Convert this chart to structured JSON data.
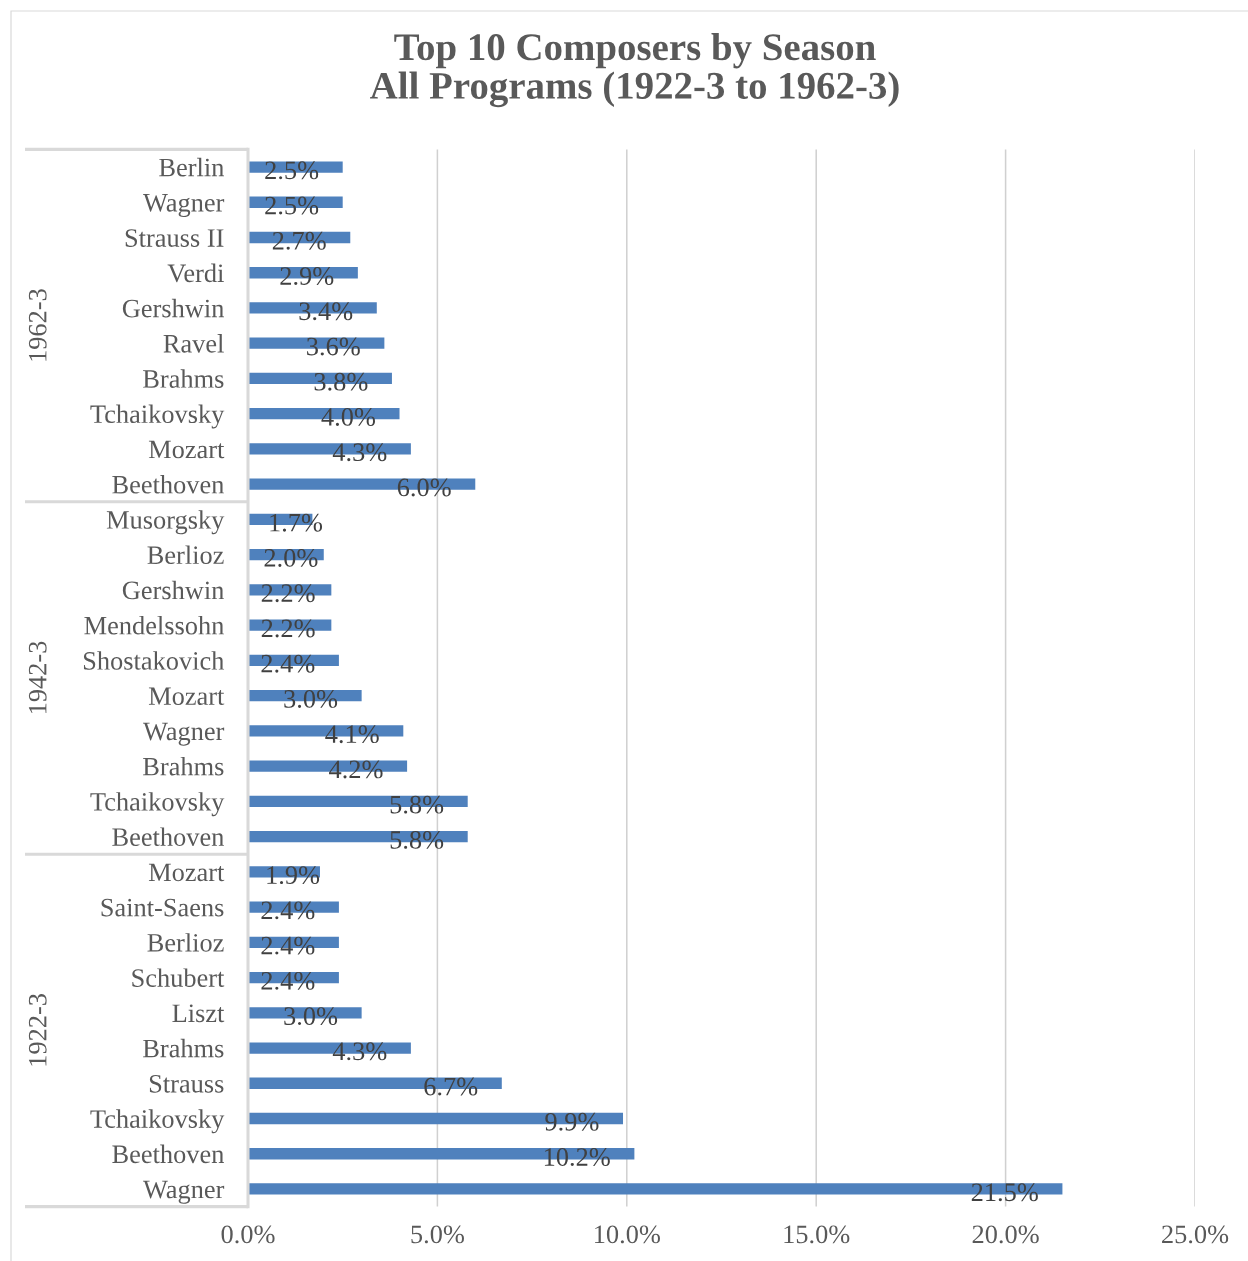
{
  "chart_data": {
    "type": "bar",
    "orientation": "horizontal",
    "title": "Top 10 Composers by Season\nAll Programs (1922-3 to 1962-3)",
    "categories": [
      "Berlin",
      "Wagner",
      "Strauss II",
      "Verdi",
      "Gershwin",
      "Ravel",
      "Brahms",
      "Tchaikovsky",
      "Mozart",
      "Beethoven",
      "Musorgsky",
      "Berlioz",
      "Gershwin",
      "Mendelssohn",
      "Shostakovich",
      "Mozart",
      "Wagner",
      "Brahms",
      "Tchaikovsky",
      "Beethoven",
      "Mozart",
      "Saint-Saens",
      "Berlioz",
      "Schubert",
      "Liszt",
      "Brahms",
      "Strauss",
      "Tchaikovsky",
      "Beethoven",
      "Wagner"
    ],
    "values": [
      2.5,
      2.5,
      2.7,
      2.9,
      3.4,
      3.6,
      3.8,
      4.0,
      4.3,
      6.0,
      1.7,
      2.0,
      2.2,
      2.2,
      2.4,
      3.0,
      4.1,
      4.2,
      5.8,
      5.8,
      1.9,
      2.4,
      2.4,
      2.4,
      3.0,
      4.3,
      6.7,
      9.9,
      10.2,
      21.5
    ],
    "value_labels": [
      "2.5%",
      "2.5%",
      "2.7%",
      "2.9%",
      "3.4%",
      "3.6%",
      "3.8%",
      "4.0%",
      "4.3%",
      "6.0%",
      "1.7%",
      "2.0%",
      "2.2%",
      "2.2%",
      "2.4%",
      "3.0%",
      "4.1%",
      "4.2%",
      "5.8%",
      "5.8%",
      "1.9%",
      "2.4%",
      "2.4%",
      "2.4%",
      "3.0%",
      "4.3%",
      "6.7%",
      "9.9%",
      "10.2%",
      "21.5%"
    ],
    "color": "#4f81bd",
    "xlim": [
      0,
      25
    ],
    "xticks": [
      {
        "value": 0,
        "label": "0.0%"
      },
      {
        "value": 5,
        "label": "5.0%"
      },
      {
        "value": 10,
        "label": "10.0%"
      },
      {
        "value": 15,
        "label": "15.0%"
      },
      {
        "value": 20,
        "label": "20.0%"
      },
      {
        "value": 25,
        "label": "25.0%"
      }
    ],
    "grid": "x",
    "annotations": [
      "1962-3",
      "1942-3",
      "1922-3"
    ]
  }
}
